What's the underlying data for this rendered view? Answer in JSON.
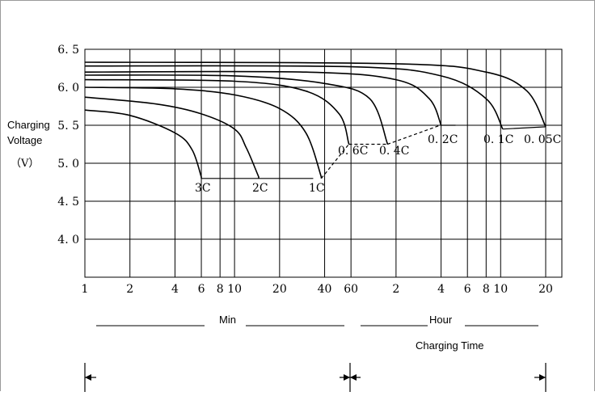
{
  "chart_data": {
    "type": "line",
    "x_scale": "log",
    "x_unit_note": "minutes (1-60) then hours (2-20)",
    "y_range": [
      4.0,
      6.5
    ],
    "grid": true,
    "y_label_lines": [
      "Charging",
      "Voltage",
      "（V）"
    ],
    "y_ticks": [
      {
        "value": 6.5,
        "label": "6. 5"
      },
      {
        "value": 6.0,
        "label": "6. 0"
      },
      {
        "value": 5.5,
        "label": "5. 5"
      },
      {
        "value": 5.0,
        "label": "5. 0"
      },
      {
        "value": 4.5,
        "label": "4. 5"
      },
      {
        "value": 4.0,
        "label": "4. 0"
      }
    ],
    "x_ticks": [
      {
        "minutes": 1,
        "label": "1"
      },
      {
        "minutes": 2,
        "label": "2"
      },
      {
        "minutes": 4,
        "label": "4"
      },
      {
        "minutes": 6,
        "label": "6"
      },
      {
        "minutes": 8,
        "label": "8"
      },
      {
        "minutes": 10,
        "label": "10"
      },
      {
        "minutes": 20,
        "label": "20"
      },
      {
        "minutes": 40,
        "label": "40"
      },
      {
        "minutes": 60,
        "label": "60"
      },
      {
        "minutes": 120,
        "label": "2"
      },
      {
        "minutes": 240,
        "label": "4"
      },
      {
        "minutes": 360,
        "label": "6"
      },
      {
        "minutes": 480,
        "label": "8"
      },
      {
        "minutes": 600,
        "label": "10"
      },
      {
        "minutes": 1200,
        "label": "20"
      }
    ],
    "x_group_labels": {
      "min": "Min",
      "hour": "Hour",
      "caption": "Charging Time"
    },
    "series": [
      {
        "name": "3C",
        "points": [
          [
            1,
            5.7
          ],
          [
            2,
            5.63
          ],
          [
            4,
            5.4
          ],
          [
            5.2,
            5.18
          ],
          [
            6,
            4.82
          ]
        ],
        "end_level": 4.8
      },
      {
        "name": "2C",
        "points": [
          [
            1,
            5.87
          ],
          [
            3,
            5.78
          ],
          [
            6,
            5.65
          ],
          [
            10,
            5.45
          ],
          [
            12,
            5.2
          ],
          [
            14.5,
            4.82
          ]
        ],
        "end_level": 4.8
      },
      {
        "name": "1C",
        "points": [
          [
            1,
            6.0
          ],
          [
            4,
            5.98
          ],
          [
            10,
            5.9
          ],
          [
            20,
            5.72
          ],
          [
            30,
            5.4
          ],
          [
            38,
            4.82
          ]
        ],
        "end_level": 4.8
      },
      {
        "name": "0.6C",
        "points": [
          [
            1,
            6.1
          ],
          [
            10,
            6.08
          ],
          [
            30,
            5.95
          ],
          [
            50,
            5.65
          ],
          [
            58,
            5.26
          ]
        ],
        "end_level": 5.25
      },
      {
        "name": "0.4C",
        "points": [
          [
            1,
            6.16
          ],
          [
            10,
            6.15
          ],
          [
            40,
            6.05
          ],
          [
            80,
            5.85
          ],
          [
            105,
            5.26
          ]
        ],
        "end_level": 5.25
      },
      {
        "name": "0.2C",
        "points": [
          [
            1,
            6.2
          ],
          [
            30,
            6.2
          ],
          [
            120,
            6.1
          ],
          [
            200,
            5.85
          ],
          [
            240,
            5.5
          ]
        ],
        "end_level": 5.5
      },
      {
        "name": "0.1C",
        "points": [
          [
            1,
            6.28
          ],
          [
            60,
            6.27
          ],
          [
            240,
            6.15
          ],
          [
            480,
            5.85
          ],
          [
            620,
            5.45
          ]
        ],
        "end_level": 5.45
      },
      {
        "name": "0.05C",
        "points": [
          [
            1,
            6.33
          ],
          [
            120,
            6.31
          ],
          [
            480,
            6.2
          ],
          [
            900,
            5.95
          ],
          [
            1200,
            5.48
          ]
        ],
        "end_level": 5.48
      }
    ],
    "curve_labels": [
      "3C",
      "2C",
      "1C",
      "0. 6C",
      "0. 4C",
      "0. 2C",
      "0. 1C",
      "0. 05C"
    ]
  }
}
